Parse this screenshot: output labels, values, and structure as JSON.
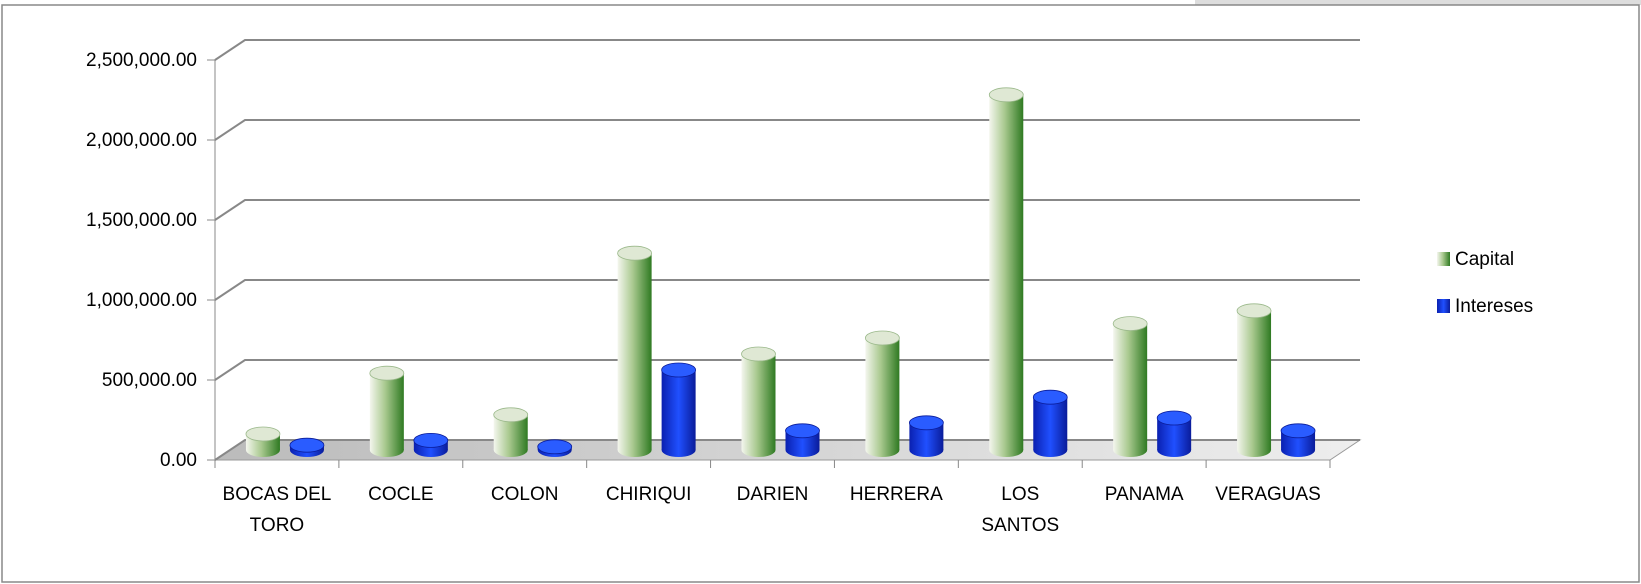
{
  "chart_data": {
    "type": "bar3d",
    "categories": [
      "BOCAS DEL TORO",
      "COCLE",
      "COLON",
      "CHIRIQUI",
      "DARIEN",
      "HERRERA",
      "LOS SANTOS",
      "PANAMA",
      "VERAGUAS"
    ],
    "series": [
      {
        "name": "Capital",
        "color": "#4a9336",
        "values": [
          100000,
          480000,
          220000,
          1230000,
          600000,
          700000,
          2220000,
          790000,
          870000
        ]
      },
      {
        "name": "Intereses",
        "color": "#1030e0",
        "values": [
          30000,
          60000,
          20000,
          500000,
          120000,
          170000,
          330000,
          200000,
          120000
        ]
      }
    ],
    "ylim": [
      0,
      2500000
    ],
    "yticks": [
      {
        "value": 0,
        "label": "0.00"
      },
      {
        "value": 500000,
        "label": "500,000.00"
      },
      {
        "value": 1000000,
        "label": "1,000,000.00"
      },
      {
        "value": 1500000,
        "label": "1,500,000.00"
      },
      {
        "value": 2000000,
        "label": "2,000,000.00"
      },
      {
        "value": 2500000,
        "label": "2,500,000.00"
      }
    ],
    "grid": true,
    "legend": "right"
  }
}
